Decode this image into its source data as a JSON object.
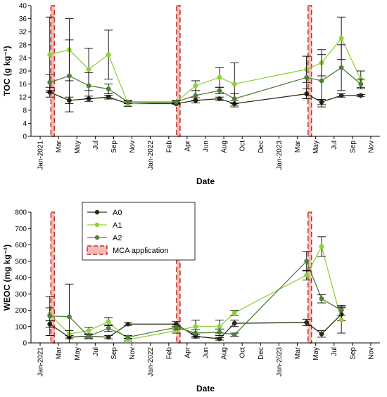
{
  "colors": {
    "A0": "#2b2b12",
    "A1": "#8fd13a",
    "A2": "#4f7f3a",
    "mca_fill": "#f3b9b5",
    "mca_edge": "#c0342a",
    "axis": "#000000"
  },
  "x_ticks": [
    "Jan-2021",
    "Mar",
    "May",
    "Jul",
    "Sep",
    "Nov",
    "Jan-2022",
    "Feb",
    "Apr",
    "Jun",
    "Aug",
    "Oct",
    "Dec",
    "Jan-2023",
    "Mar",
    "May",
    "Jul",
    "Sep",
    "Nov"
  ],
  "mca_application_dates": [
    "2021-03-10",
    "2022-04-08",
    "2023-05-25"
  ],
  "legend": {
    "A0": "A0",
    "A1": "A1",
    "A2": "A2",
    "MCA": "MCA application"
  },
  "chart_data": [
    {
      "type": "line",
      "ylabel": "TOC (g kg⁻¹)",
      "xlabel": "Date",
      "ylim": [
        0,
        40
      ],
      "yticks": [
        0,
        4,
        8,
        12,
        16,
        20,
        24,
        28,
        32,
        36,
        40
      ],
      "grid": false,
      "series": [
        {
          "name": "A0",
          "points": [
            {
              "x": "2021-03-01",
              "y": 13.5,
              "err": 1.5
            },
            {
              "x": "2021-05-01",
              "y": 11.0,
              "err": 1.0
            },
            {
              "x": "2021-07-01",
              "y": 11.5,
              "err": 0.8
            },
            {
              "x": "2021-09-01",
              "y": 12.0,
              "err": 0.6
            },
            {
              "x": "2021-11-01",
              "y": 10.0,
              "err": 0.8
            },
            {
              "x": "2022-04-01",
              "y": 10.0,
              "err": 0.3
            },
            {
              "x": "2022-06-01",
              "y": 11.0,
              "err": 0.8
            },
            {
              "x": "2022-08-15",
              "y": 11.5,
              "err": 0.5
            },
            {
              "x": "2022-10-01",
              "y": 10.0,
              "err": 1.0
            },
            {
              "x": "2023-05-15",
              "y": 13.0,
              "err": 1.5
            },
            {
              "x": "2023-07-01",
              "y": 10.5,
              "err": 0.8
            },
            {
              "x": "2023-09-01",
              "y": 12.5,
              "err": 0.5
            },
            {
              "x": "2023-11-01",
              "y": 12.5,
              "err": 0.3
            }
          ]
        },
        {
          "name": "A1",
          "points": [
            {
              "x": "2021-03-01",
              "y": 25.0,
              "err": 11.5
            },
            {
              "x": "2021-05-01",
              "y": 26.5,
              "err": 9.5
            },
            {
              "x": "2021-07-01",
              "y": 20.5,
              "err": 6.5
            },
            {
              "x": "2021-09-01",
              "y": 25.0,
              "err": 7.5
            },
            {
              "x": "2021-11-01",
              "y": 10.0,
              "err": 0.8
            },
            {
              "x": "2022-04-01",
              "y": 10.5,
              "err": 0.5
            },
            {
              "x": "2022-06-01",
              "y": 15.5,
              "err": 1.5
            },
            {
              "x": "2022-08-15",
              "y": 18.0,
              "err": 3.0
            },
            {
              "x": "2022-10-01",
              "y": 16.0,
              "err": 6.5
            },
            {
              "x": "2023-05-15",
              "y": 20.5,
              "err": 4.0
            },
            {
              "x": "2023-07-01",
              "y": 22.5,
              "err": 4.0
            },
            {
              "x": "2023-09-01",
              "y": 30.0,
              "err": 6.5
            },
            {
              "x": "2023-11-01",
              "y": 17.5,
              "err": 2.5
            }
          ]
        },
        {
          "name": "A2",
          "points": [
            {
              "x": "2021-03-01",
              "y": 16.5,
              "err": 2.5
            },
            {
              "x": "2021-05-01",
              "y": 18.5,
              "err": 11.0
            },
            {
              "x": "2021-07-01",
              "y": 15.5,
              "err": 4.0
            },
            {
              "x": "2021-09-01",
              "y": 14.5,
              "err": 1.5
            },
            {
              "x": "2021-11-01",
              "y": 10.5,
              "err": 0.5
            },
            {
              "x": "2022-04-01",
              "y": 10.5,
              "err": 0.3
            },
            {
              "x": "2022-06-01",
              "y": 12.5,
              "err": 1.5
            },
            {
              "x": "2022-08-15",
              "y": 14.0,
              "err": 1.0
            },
            {
              "x": "2022-10-01",
              "y": 11.5,
              "err": 1.5
            },
            {
              "x": "2023-05-15",
              "y": 18.0,
              "err": 6.5
            },
            {
              "x": "2023-07-01",
              "y": 17.0,
              "err": 8.0
            },
            {
              "x": "2023-09-01",
              "y": 21.0,
              "err": 7.0
            },
            {
              "x": "2023-11-01",
              "y": 16.0,
              "err": 1.5
            }
          ]
        }
      ]
    },
    {
      "type": "line",
      "ylabel": "WEOC (mg kg⁻¹)",
      "xlabel": "Date",
      "ylim": [
        0,
        800
      ],
      "yticks": [
        0,
        100,
        200,
        300,
        400,
        500,
        600,
        700,
        800
      ],
      "grid": false,
      "legend_position": "top-left",
      "series": [
        {
          "name": "A0",
          "points": [
            {
              "x": "2021-03-01",
              "y": 115,
              "err": 20
            },
            {
              "x": "2021-05-01",
              "y": 35,
              "err": 10
            },
            {
              "x": "2021-07-01",
              "y": 40,
              "err": 10
            },
            {
              "x": "2021-09-01",
              "y": 35,
              "err": 10
            },
            {
              "x": "2021-11-01",
              "y": 115,
              "err": 8
            },
            {
              "x": "2022-04-01",
              "y": 115,
              "err": 15
            },
            {
              "x": "2022-06-01",
              "y": 40,
              "err": 10
            },
            {
              "x": "2022-08-15",
              "y": 25,
              "err": 8
            },
            {
              "x": "2022-10-01",
              "y": 120,
              "err": 20
            },
            {
              "x": "2023-05-15",
              "y": 125,
              "err": 20
            },
            {
              "x": "2023-07-01",
              "y": 55,
              "err": 20
            },
            {
              "x": "2023-09-01",
              "y": 175,
              "err": 40
            }
          ]
        },
        {
          "name": "A1",
          "points": [
            {
              "x": "2021-03-01",
              "y": 175,
              "err": 40
            },
            {
              "x": "2021-05-01",
              "y": 55,
              "err": 20
            },
            {
              "x": "2021-07-01",
              "y": 75,
              "err": 20
            },
            {
              "x": "2021-09-01",
              "y": 130,
              "err": 25
            },
            {
              "x": "2021-11-01",
              "y": 20,
              "err": 8
            },
            {
              "x": "2022-04-01",
              "y": 75,
              "err": 15
            },
            {
              "x": "2022-06-01",
              "y": 100,
              "err": 40
            },
            {
              "x": "2022-08-15",
              "y": 100,
              "err": 40
            },
            {
              "x": "2022-10-01",
              "y": 185,
              "err": 15
            },
            {
              "x": "2023-05-15",
              "y": 415,
              "err": 30
            },
            {
              "x": "2023-07-01",
              "y": 590,
              "err": 60
            },
            {
              "x": "2023-09-01",
              "y": 140,
              "err": 80
            }
          ]
        },
        {
          "name": "A2",
          "points": [
            {
              "x": "2021-03-01",
              "y": 165,
              "err": 120
            },
            {
              "x": "2021-05-01",
              "y": 160,
              "err": 200
            },
            {
              "x": "2021-07-01",
              "y": 40,
              "err": 15
            },
            {
              "x": "2021-09-01",
              "y": 90,
              "err": 20
            },
            {
              "x": "2021-11-01",
              "y": 35,
              "err": 10
            },
            {
              "x": "2022-04-01",
              "y": 95,
              "err": 15
            },
            {
              "x": "2022-06-01",
              "y": 60,
              "err": 20
            },
            {
              "x": "2022-08-15",
              "y": 65,
              "err": 20
            },
            {
              "x": "2022-10-01",
              "y": 50,
              "err": 10
            },
            {
              "x": "2023-05-15",
              "y": 500,
              "err": 60
            },
            {
              "x": "2023-07-01",
              "y": 270,
              "err": 25
            },
            {
              "x": "2023-09-01",
              "y": 200,
              "err": 30
            }
          ]
        }
      ]
    }
  ]
}
